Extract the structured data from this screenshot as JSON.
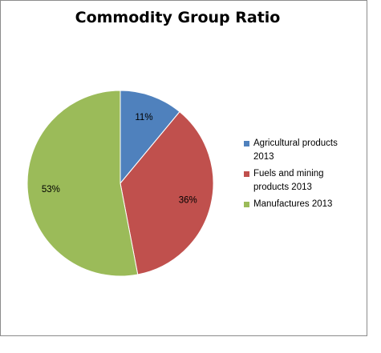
{
  "chart_data": {
    "type": "pie",
    "title": "Commodity Group Ratio",
    "slices": [
      {
        "label": "Agricultural products 2013",
        "value": 11,
        "value_label": "11%",
        "color": "#4f81bd"
      },
      {
        "label": "Fuels and mining products 2013",
        "value": 36,
        "value_label": "36%",
        "color": "#c0504d"
      },
      {
        "label": "Manufactures 2013",
        "value": 53,
        "value_label": "53%",
        "color": "#9bbb59"
      }
    ],
    "start_angle": "12 o'clock",
    "direction": "clockwise",
    "legend_position": "right"
  },
  "legend": {
    "items": [
      {
        "lines": [
          "Agricultural products",
          "2013"
        ],
        "color": "#4f81bd"
      },
      {
        "lines": [
          "Fuels and mining",
          "products 2013"
        ],
        "color": "#c0504d"
      },
      {
        "lines": [
          "Manufactures 2013"
        ],
        "color": "#9bbb59"
      }
    ]
  }
}
